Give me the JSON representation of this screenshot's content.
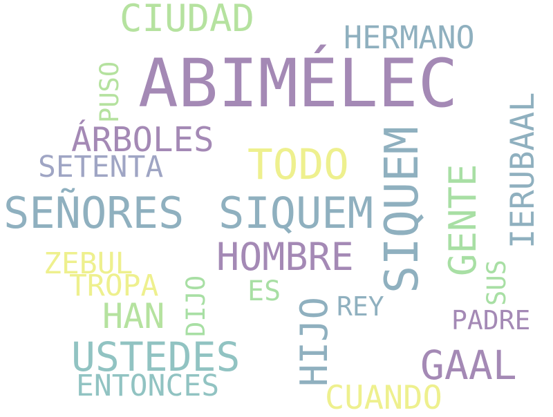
{
  "palette": {
    "purple": "#a489b5",
    "slate": "#8fb0bf",
    "green": "#a8dfa4",
    "yellow": "#eef08e",
    "teal": "#91c3c2",
    "lavender": "#9fa5c4"
  },
  "words": [
    {
      "text": "ABIMÉLEC",
      "color": "#a489b5"
    },
    {
      "text": "CIUDAD",
      "color": "#b5e29f"
    },
    {
      "text": "HERMANO",
      "color": "#8fb0bf"
    },
    {
      "text": "PUSO",
      "color": "#b5e29f"
    },
    {
      "text": "IERUBAAL",
      "color": "#8fb0bf"
    },
    {
      "text": "ÁRBOLES",
      "color": "#a489b5"
    },
    {
      "text": "TODO",
      "color": "#eef08e"
    },
    {
      "text": "SIQUEM",
      "color": "#8fb0bf"
    },
    {
      "text": "GENTE",
      "color": "#a8dfa4"
    },
    {
      "text": "SETENTA",
      "color": "#9fa5c4"
    },
    {
      "text": "SEÑORES",
      "color": "#8fb0bf"
    },
    {
      "text": "SIQUEM",
      "color": "#8fb0bf"
    },
    {
      "text": "HOMBRE",
      "color": "#a489b5"
    },
    {
      "text": "ZEBUL",
      "color": "#eef08e"
    },
    {
      "text": "TROPA",
      "color": "#eef08e"
    },
    {
      "text": "DIJO",
      "color": "#a8dfa4"
    },
    {
      "text": "ES",
      "color": "#a8dfa4"
    },
    {
      "text": "SUS",
      "color": "#a8dfa4"
    },
    {
      "text": "HAN",
      "color": "#b5e29f"
    },
    {
      "text": "HIJO",
      "color": "#8fb0bf"
    },
    {
      "text": "REY",
      "color": "#8fb0bf"
    },
    {
      "text": "PADRE",
      "color": "#a489b5"
    },
    {
      "text": "USTEDES",
      "color": "#91c3c2"
    },
    {
      "text": "GAAL",
      "color": "#a489b5"
    },
    {
      "text": "ENTONCES",
      "color": "#91c3c2"
    },
    {
      "text": "CUANDO",
      "color": "#eef08e"
    }
  ]
}
